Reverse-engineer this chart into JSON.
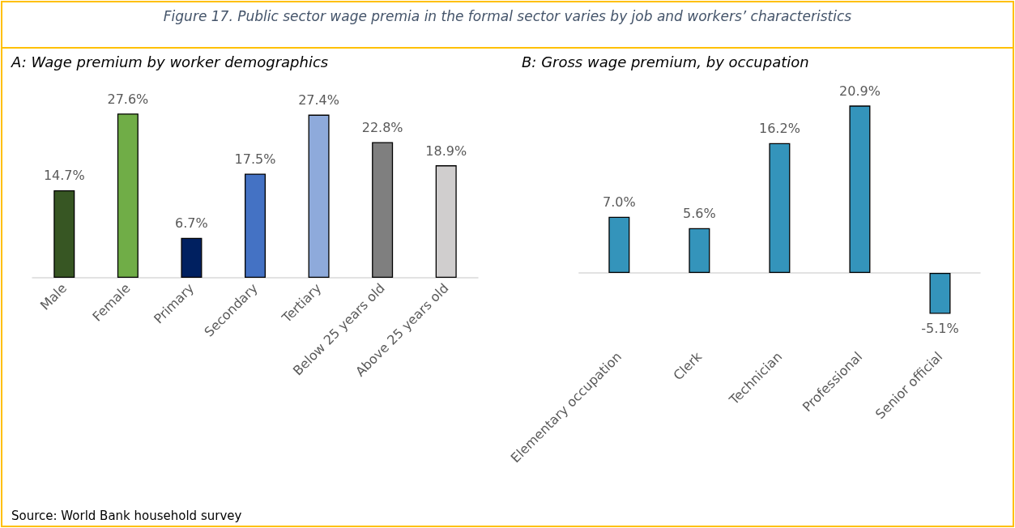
{
  "chart_data": [
    {
      "type": "bar",
      "title": "A: Wage premium by worker demographics",
      "annotations": [
        "Figure 17. Public sector wage premia in the formal sector varies by job and workers’ characteristics",
        "Source: World Bank household survey"
      ],
      "categories": [
        "Male",
        "Female",
        "Primary",
        "Secondary",
        "Tertiary",
        "Below 25 years old",
        "Above 25 years old"
      ],
      "values": [
        14.7,
        27.6,
        6.7,
        17.5,
        27.4,
        22.8,
        18.9
      ],
      "colors": [
        "#375623",
        "#70ad47",
        "#002060",
        "#4472c4",
        "#8eaadb",
        "#7f7f7f",
        "#d0cece"
      ],
      "value_labels": [
        "14.7%",
        "27.6%",
        "6.7%",
        "17.5%",
        "27.4%",
        "22.8%",
        "18.9%"
      ]
    },
    {
      "type": "bar",
      "title": "B: Gross wage premium, by occupation",
      "categories": [
        "Elementary occupation",
        "Clerk",
        "Technician",
        "Professional",
        "Senior official"
      ],
      "values": [
        7.0,
        5.6,
        16.2,
        20.9,
        -5.1
      ],
      "color": "#3494bb",
      "value_labels": [
        "7.0%",
        "5.6%",
        "16.2%",
        "20.9%",
        "-5.1%"
      ]
    }
  ]
}
